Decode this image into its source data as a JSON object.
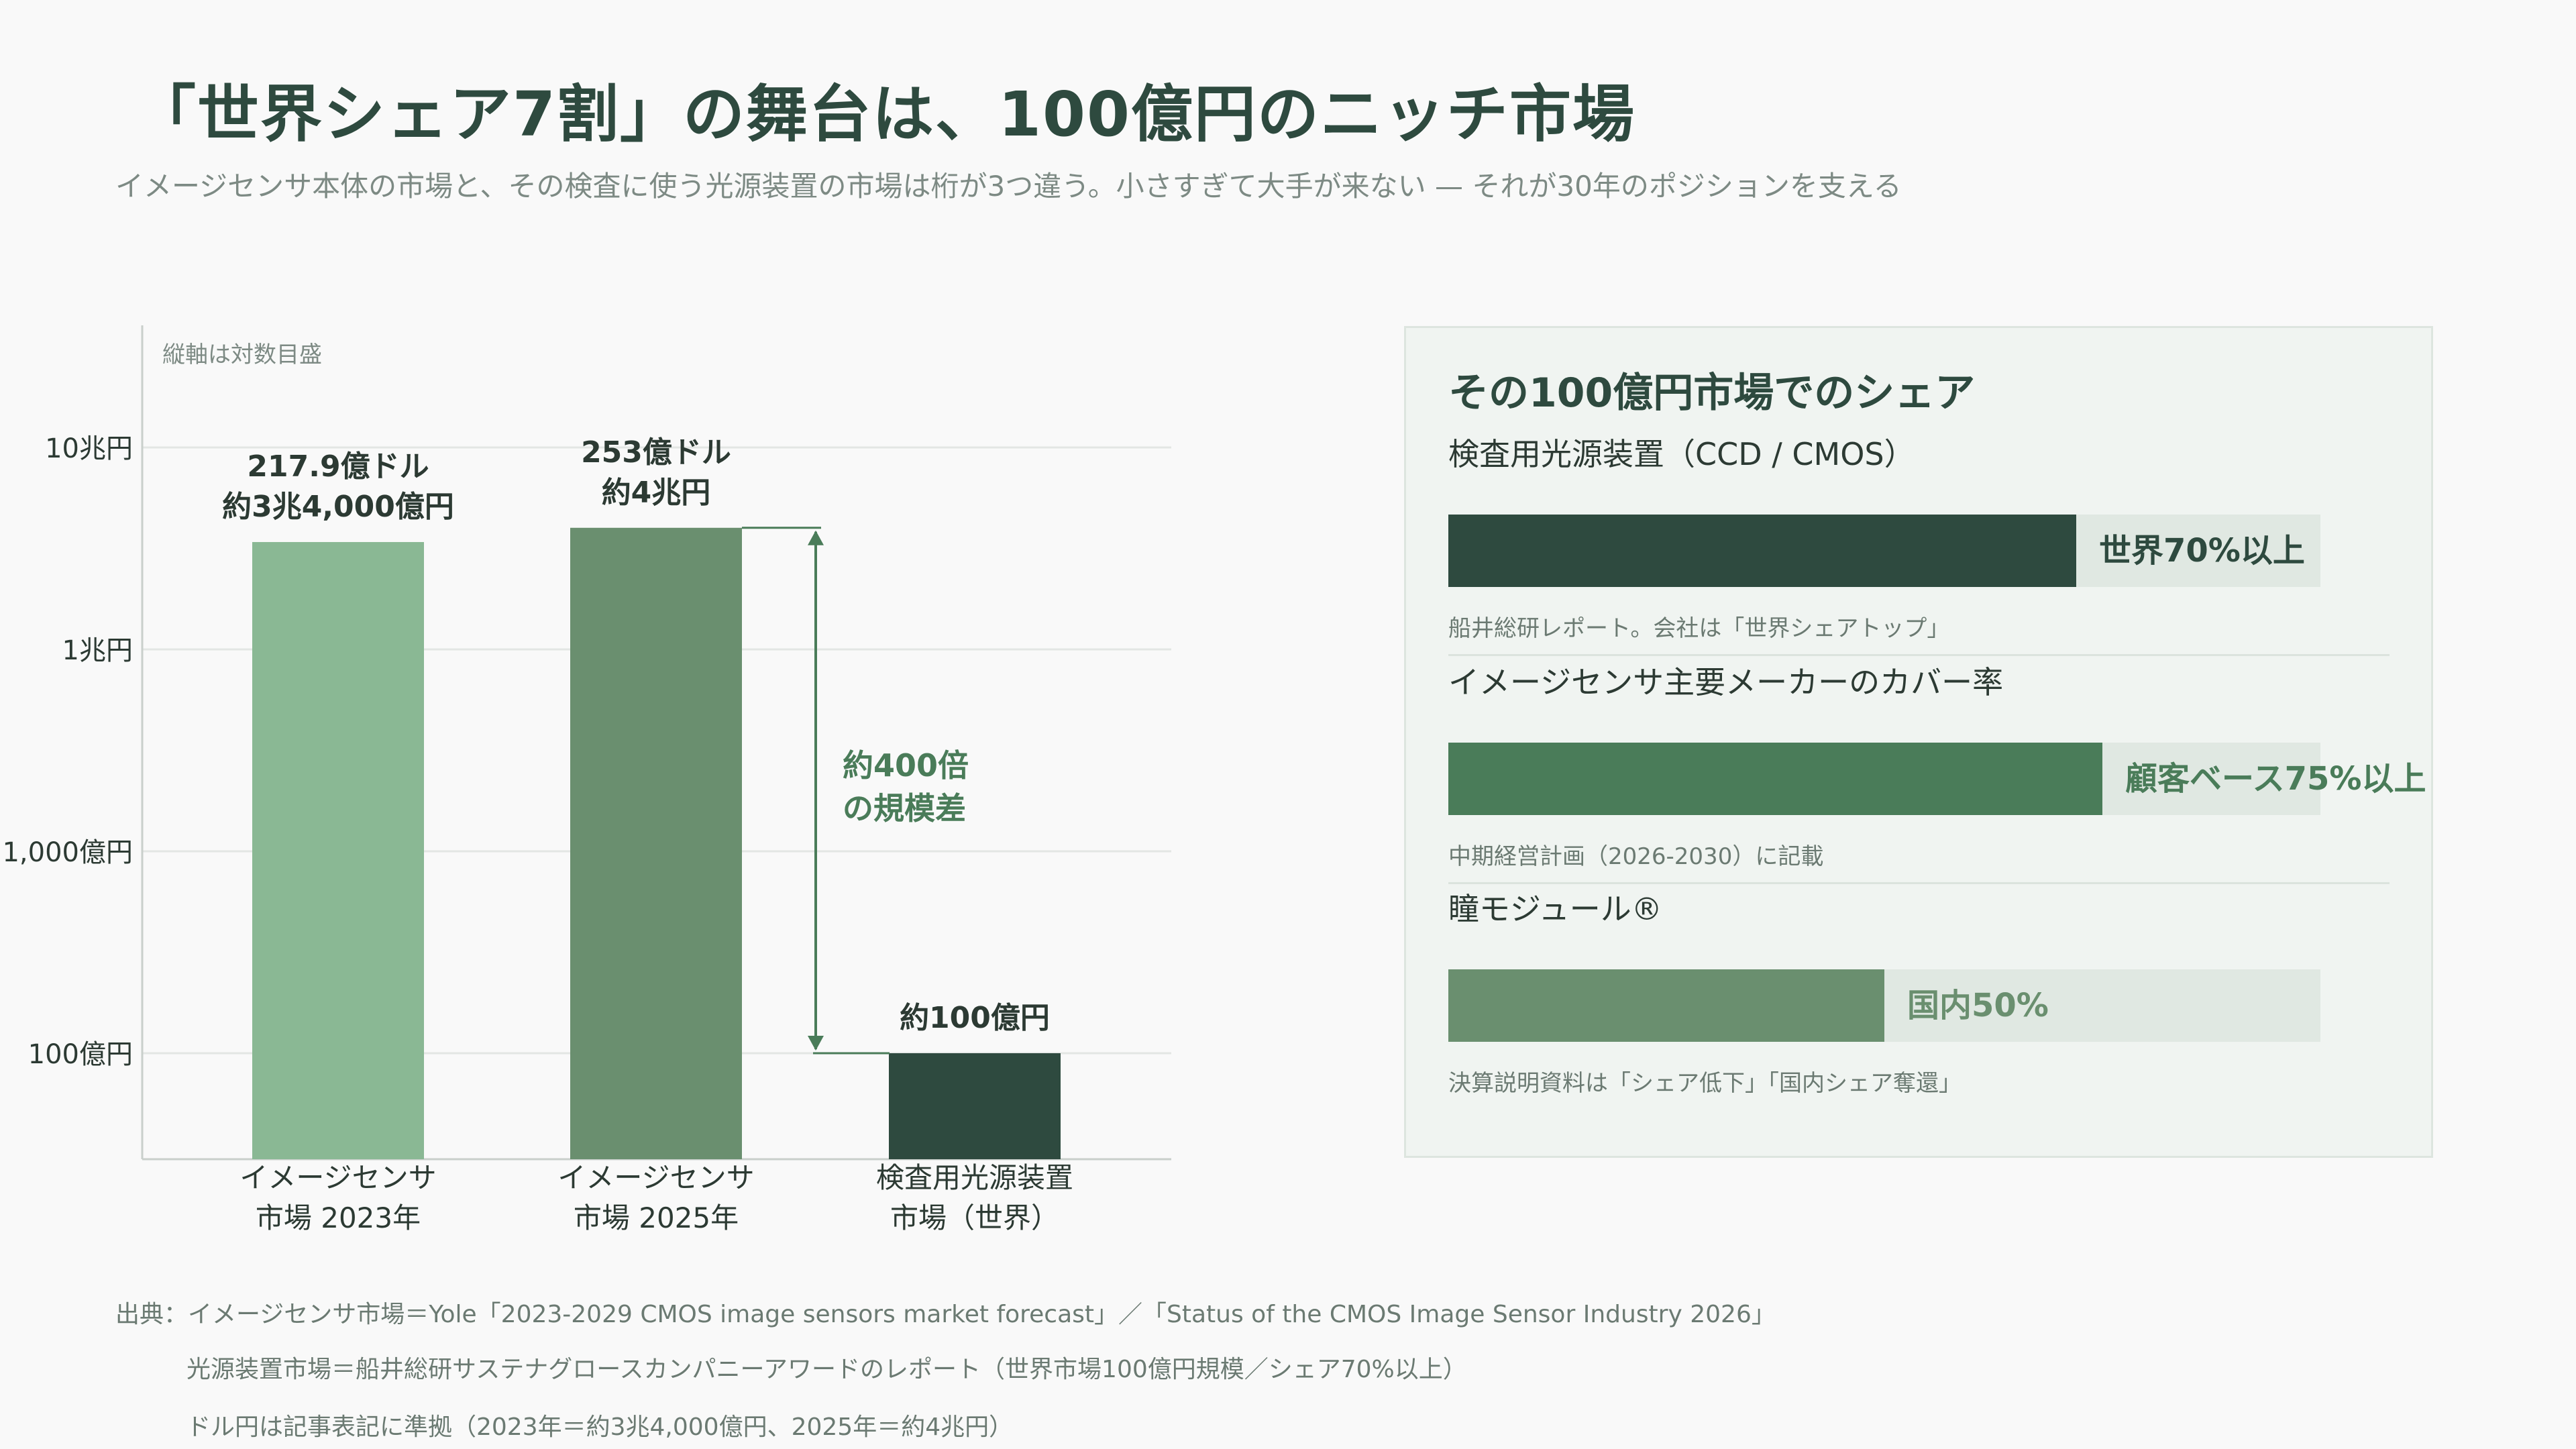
{
  "header": {
    "title": "「世界シェア7割」の舞台は、100億円のニッチ市場",
    "subtitle": "イメージセンサ本体の市場と、その検査に使う光源装置の市場は桁が3つ違う。小さすぎて大手が来ない — それが30年のポジションを支える"
  },
  "chart_data": {
    "type": "bar",
    "note": "縦軸は対数目盛",
    "yscale": "log",
    "y_ticks": [
      {
        "value": 100,
        "label": "100億円"
      },
      {
        "value": 1000,
        "label": "1,000億円"
      },
      {
        "value": 10000,
        "label": "1兆円"
      },
      {
        "value": 100000,
        "label": "10兆円"
      }
    ],
    "ylim_oku_yen": [
      30,
      400000
    ],
    "bars": [
      {
        "category": [
          "イメージセンサ",
          "市場 2023年"
        ],
        "value_oku_yen": 34000,
        "labels": [
          "217.9億ドル",
          "約3兆4,000億円"
        ],
        "color": "#8ab894"
      },
      {
        "category": [
          "イメージセンサ",
          "市場 2025年"
        ],
        "value_oku_yen": 40000,
        "labels": [
          "253億ドル",
          "約4兆円"
        ],
        "color": "#6a8f6f"
      },
      {
        "category": [
          "検査用光源装置",
          "市場（世界）"
        ],
        "value_oku_yen": 100,
        "labels": [
          "約100億円"
        ],
        "color": "#2e4a3f"
      }
    ],
    "annotation": {
      "lines": [
        "約400倍",
        "の規模差"
      ],
      "color": "#4a7c59"
    }
  },
  "panel": {
    "title": "その100億円市場でのシェア",
    "items": [
      {
        "label": "検査用光源装置（CCD / CMOS）",
        "value_pct": 72,
        "value_text": "世界70%以上",
        "note": "船井総研レポート。会社は「世界シェアトップ」",
        "fill": "#2e4a3f",
        "text_color": "#2e4a3f"
      },
      {
        "label": "イメージセンサ主要メーカーのカバー率",
        "value_pct": 75,
        "value_text": "顧客ベース75%以上",
        "note": "中期経営計画（2026-2030）に記載",
        "fill": "#4a7c59",
        "text_color": "#4a7c59"
      },
      {
        "label": "瞳モジュール®",
        "value_pct": 50,
        "value_text": "国内50%",
        "note": "決算説明資料は「シェア低下」「国内シェア奪還」",
        "fill": "#6a8f6f",
        "text_color": "#6a8f6f"
      }
    ]
  },
  "sources": [
    "出典：イメージセンサ市場＝Yole「2023-2029 CMOS image sensors market forecast」／「Status of the CMOS Image Sensor Industry 2026」",
    "光源装置市場＝船井総研サステナグロースカンパニーアワードのレポート（世界市場100億円規模／シェア70%以上）",
    "ドル円は記事表記に準拠（2023年＝約3兆4,000億円、2025年＝約4兆円）"
  ]
}
